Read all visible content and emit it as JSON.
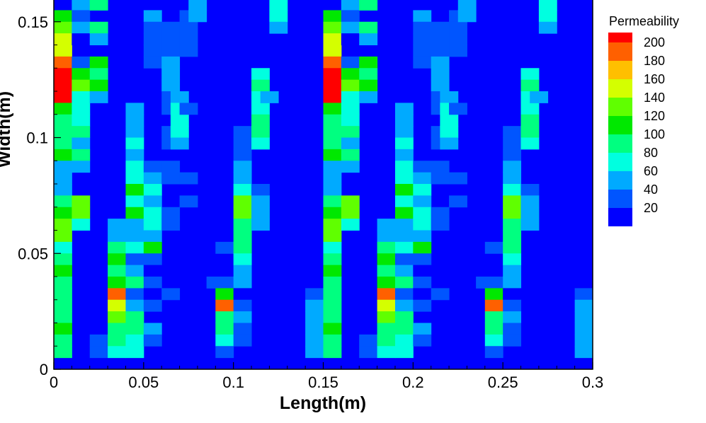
{
  "chart_data": {
    "type": "heatmap",
    "xlabel": "Length(m)",
    "ylabel": "Width(m)",
    "xlim": [
      0,
      0.3
    ],
    "ylim": [
      0,
      0.16
    ],
    "x_ticks": [
      "0",
      "0.05",
      "0.1",
      "0.15",
      "0.2",
      "0.25",
      "0.3"
    ],
    "x_tick_values": [
      0,
      0.05,
      0.1,
      0.15,
      0.2,
      0.25,
      0.3
    ],
    "y_ticks": [
      "0",
      "0.05",
      "0.1",
      "0.15"
    ],
    "y_tick_values": [
      0,
      0.05,
      0.1,
      0.15
    ],
    "legend_title": "Permeability",
    "legend_levels": [
      "200",
      "180",
      "160",
      "140",
      "120",
      "100",
      "80",
      "60",
      "40",
      "20"
    ],
    "legend_colors": [
      "#ff0000",
      "#ff6000",
      "#ffbf00",
      "#d4ff00",
      "#60ff00",
      "#00e800",
      "#00ff80",
      "#00ffe0",
      "#00aaff",
      "#0055ff",
      "#0000ff"
    ],
    "legend_position": "right",
    "background_value": 20,
    "cell_size": [
      0.01,
      0.005
    ],
    "cells": [
      [
        0,
        0.15,
        120
      ],
      [
        0,
        0.145,
        140
      ],
      [
        0,
        0.14,
        160
      ],
      [
        0,
        0.135,
        170
      ],
      [
        0,
        0.13,
        200
      ],
      [
        0,
        0.125,
        210
      ],
      [
        0,
        0.12,
        210
      ],
      [
        0,
        0.115,
        210
      ],
      [
        0,
        0.11,
        120
      ],
      [
        0,
        0.105,
        100
      ],
      [
        0,
        0.1,
        110
      ],
      [
        0,
        0.095,
        100
      ],
      [
        0,
        0.09,
        120
      ],
      [
        0,
        0.085,
        60
      ],
      [
        0,
        0.08,
        60
      ],
      [
        0,
        0.075,
        60
      ],
      [
        0,
        0.07,
        100
      ],
      [
        0,
        0.065,
        120
      ],
      [
        0,
        0.06,
        150
      ],
      [
        0,
        0.055,
        140
      ],
      [
        0,
        0.05,
        80
      ],
      [
        0,
        0.045,
        110
      ],
      [
        0,
        0.04,
        120
      ],
      [
        0,
        0.035,
        110
      ],
      [
        0,
        0.03,
        100
      ],
      [
        0,
        0.025,
        110
      ],
      [
        0,
        0.02,
        100
      ],
      [
        0,
        0.015,
        120
      ],
      [
        0,
        0.01,
        110
      ],
      [
        0,
        0.005,
        100
      ],
      [
        0.01,
        0.155,
        60
      ],
      [
        0.01,
        0.15,
        40
      ],
      [
        0.01,
        0.145,
        60
      ],
      [
        0.01,
        0.14,
        20
      ],
      [
        0.01,
        0.13,
        40
      ],
      [
        0.01,
        0.125,
        120
      ],
      [
        0.01,
        0.12,
        150
      ],
      [
        0.01,
        0.115,
        80
      ],
      [
        0.01,
        0.11,
        80
      ],
      [
        0.01,
        0.105,
        80
      ],
      [
        0.01,
        0.1,
        100
      ],
      [
        0.01,
        0.095,
        60
      ],
      [
        0.01,
        0.09,
        100
      ],
      [
        0.01,
        0.085,
        60
      ],
      [
        0.01,
        0.07,
        140
      ],
      [
        0.01,
        0.065,
        140
      ],
      [
        0.01,
        0.06,
        80
      ],
      [
        0.02,
        0.16,
        140
      ],
      [
        0.02,
        0.155,
        110
      ],
      [
        0.02,
        0.145,
        110
      ],
      [
        0.02,
        0.14,
        60
      ],
      [
        0.02,
        0.13,
        120
      ],
      [
        0.02,
        0.125,
        100
      ],
      [
        0.02,
        0.12,
        120
      ],
      [
        0.02,
        0.115,
        60
      ],
      [
        0.02,
        0.01,
        40
      ],
      [
        0.02,
        0.005,
        40
      ],
      [
        0.03,
        0.06,
        60
      ],
      [
        0.03,
        0.055,
        60
      ],
      [
        0.03,
        0.05,
        110
      ],
      [
        0.03,
        0.045,
        120
      ],
      [
        0.03,
        0.04,
        110
      ],
      [
        0.03,
        0.035,
        130
      ],
      [
        0.03,
        0.03,
        200
      ],
      [
        0.03,
        0.025,
        160
      ],
      [
        0.03,
        0.02,
        150
      ],
      [
        0.03,
        0.015,
        110
      ],
      [
        0.03,
        0.01,
        100
      ],
      [
        0.03,
        0.005,
        80
      ],
      [
        0.04,
        0.11,
        60
      ],
      [
        0.04,
        0.105,
        60
      ],
      [
        0.04,
        0.1,
        60
      ],
      [
        0.04,
        0.095,
        80
      ],
      [
        0.04,
        0.09,
        60
      ],
      [
        0.04,
        0.085,
        80
      ],
      [
        0.04,
        0.08,
        80
      ],
      [
        0.04,
        0.075,
        120
      ],
      [
        0.04,
        0.07,
        80
      ],
      [
        0.04,
        0.065,
        120
      ],
      [
        0.04,
        0.06,
        60
      ],
      [
        0.04,
        0.055,
        60
      ],
      [
        0.04,
        0.05,
        80
      ],
      [
        0.04,
        0.045,
        40
      ],
      [
        0.04,
        0.04,
        60
      ],
      [
        0.04,
        0.035,
        100
      ],
      [
        0.04,
        0.03,
        40
      ],
      [
        0.04,
        0.025,
        60
      ],
      [
        0.04,
        0.02,
        100
      ],
      [
        0.04,
        0.015,
        110
      ],
      [
        0.04,
        0.01,
        80
      ],
      [
        0.04,
        0.005,
        80
      ],
      [
        0.05,
        0.15,
        60
      ],
      [
        0.05,
        0.145,
        40
      ],
      [
        0.05,
        0.14,
        40
      ],
      [
        0.05,
        0.135,
        40
      ],
      [
        0.05,
        0.13,
        40
      ],
      [
        0.05,
        0.085,
        40
      ],
      [
        0.05,
        0.08,
        60
      ],
      [
        0.05,
        0.075,
        80
      ],
      [
        0.05,
        0.07,
        60
      ],
      [
        0.05,
        0.065,
        80
      ],
      [
        0.05,
        0.06,
        80
      ],
      [
        0.05,
        0.055,
        60
      ],
      [
        0.05,
        0.05,
        120
      ],
      [
        0.05,
        0.045,
        40
      ],
      [
        0.05,
        0.04,
        20
      ],
      [
        0.05,
        0.035,
        40
      ],
      [
        0.05,
        0.03,
        20
      ],
      [
        0.05,
        0.025,
        40
      ],
      [
        0.05,
        0.015,
        60
      ],
      [
        0.05,
        0.01,
        40
      ],
      [
        0.06,
        0.145,
        40
      ],
      [
        0.06,
        0.14,
        40
      ],
      [
        0.06,
        0.135,
        40
      ],
      [
        0.06,
        0.13,
        60
      ],
      [
        0.06,
        0.125,
        60
      ],
      [
        0.06,
        0.12,
        60
      ],
      [
        0.06,
        0.115,
        40
      ],
      [
        0.06,
        0.11,
        40
      ],
      [
        0.06,
        0.1,
        40
      ],
      [
        0.06,
        0.095,
        40
      ],
      [
        0.06,
        0.085,
        40
      ],
      [
        0.06,
        0.08,
        40
      ],
      [
        0.06,
        0.065,
        40
      ],
      [
        0.06,
        0.06,
        40
      ],
      [
        0.06,
        0.03,
        40
      ],
      [
        0.065,
        0.115,
        60
      ],
      [
        0.065,
        0.11,
        80
      ],
      [
        0.065,
        0.105,
        80
      ],
      [
        0.065,
        0.1,
        80
      ],
      [
        0.065,
        0.095,
        60
      ],
      [
        0.07,
        0.15,
        40
      ],
      [
        0.07,
        0.145,
        40
      ],
      [
        0.07,
        0.14,
        40
      ],
      [
        0.07,
        0.135,
        40
      ],
      [
        0.07,
        0.11,
        40
      ],
      [
        0.07,
        0.08,
        40
      ],
      [
        0.07,
        0.07,
        40
      ],
      [
        0.075,
        0.16,
        80
      ],
      [
        0.075,
        0.155,
        60
      ],
      [
        0.075,
        0.15,
        60
      ],
      [
        0.085,
        0.035,
        40
      ],
      [
        0.09,
        0.05,
        40
      ],
      [
        0.09,
        0.035,
        40
      ],
      [
        0.09,
        0.03,
        130
      ],
      [
        0.09,
        0.025,
        200
      ],
      [
        0.09,
        0.02,
        110
      ],
      [
        0.09,
        0.015,
        100
      ],
      [
        0.09,
        0.01,
        80
      ],
      [
        0.09,
        0.005,
        40
      ],
      [
        0.1,
        0.1,
        40
      ],
      [
        0.1,
        0.095,
        40
      ],
      [
        0.1,
        0.09,
        40
      ],
      [
        0.1,
        0.085,
        60
      ],
      [
        0.1,
        0.08,
        60
      ],
      [
        0.1,
        0.075,
        80
      ],
      [
        0.1,
        0.07,
        150
      ],
      [
        0.1,
        0.065,
        140
      ],
      [
        0.1,
        0.06,
        100
      ],
      [
        0.1,
        0.055,
        100
      ],
      [
        0.1,
        0.05,
        100
      ],
      [
        0.1,
        0.045,
        80
      ],
      [
        0.1,
        0.04,
        60
      ],
      [
        0.1,
        0.035,
        60
      ],
      [
        0.1,
        0.03,
        20
      ],
      [
        0.1,
        0.025,
        40
      ],
      [
        0.1,
        0.02,
        60
      ],
      [
        0.1,
        0.015,
        40
      ],
      [
        0.1,
        0.01,
        40
      ],
      [
        0.11,
        0.125,
        80
      ],
      [
        0.11,
        0.12,
        100
      ],
      [
        0.11,
        0.115,
        80
      ],
      [
        0.11,
        0.11,
        80
      ],
      [
        0.11,
        0.105,
        100
      ],
      [
        0.11,
        0.1,
        100
      ],
      [
        0.11,
        0.095,
        80
      ],
      [
        0.11,
        0.075,
        40
      ],
      [
        0.11,
        0.07,
        60
      ],
      [
        0.11,
        0.065,
        60
      ],
      [
        0.11,
        0.06,
        60
      ],
      [
        0.115,
        0.115,
        60
      ],
      [
        0.12,
        0.16,
        120
      ],
      [
        0.12,
        0.155,
        80
      ],
      [
        0.12,
        0.15,
        80
      ],
      [
        0.12,
        0.145,
        60
      ],
      [
        0.14,
        0.03,
        40
      ],
      [
        0.14,
        0.025,
        60
      ],
      [
        0.14,
        0.02,
        60
      ],
      [
        0.14,
        0.015,
        60
      ],
      [
        0.14,
        0.01,
        60
      ],
      [
        0.14,
        0.005,
        60
      ]
    ],
    "pattern_repeat": 0.15
  }
}
